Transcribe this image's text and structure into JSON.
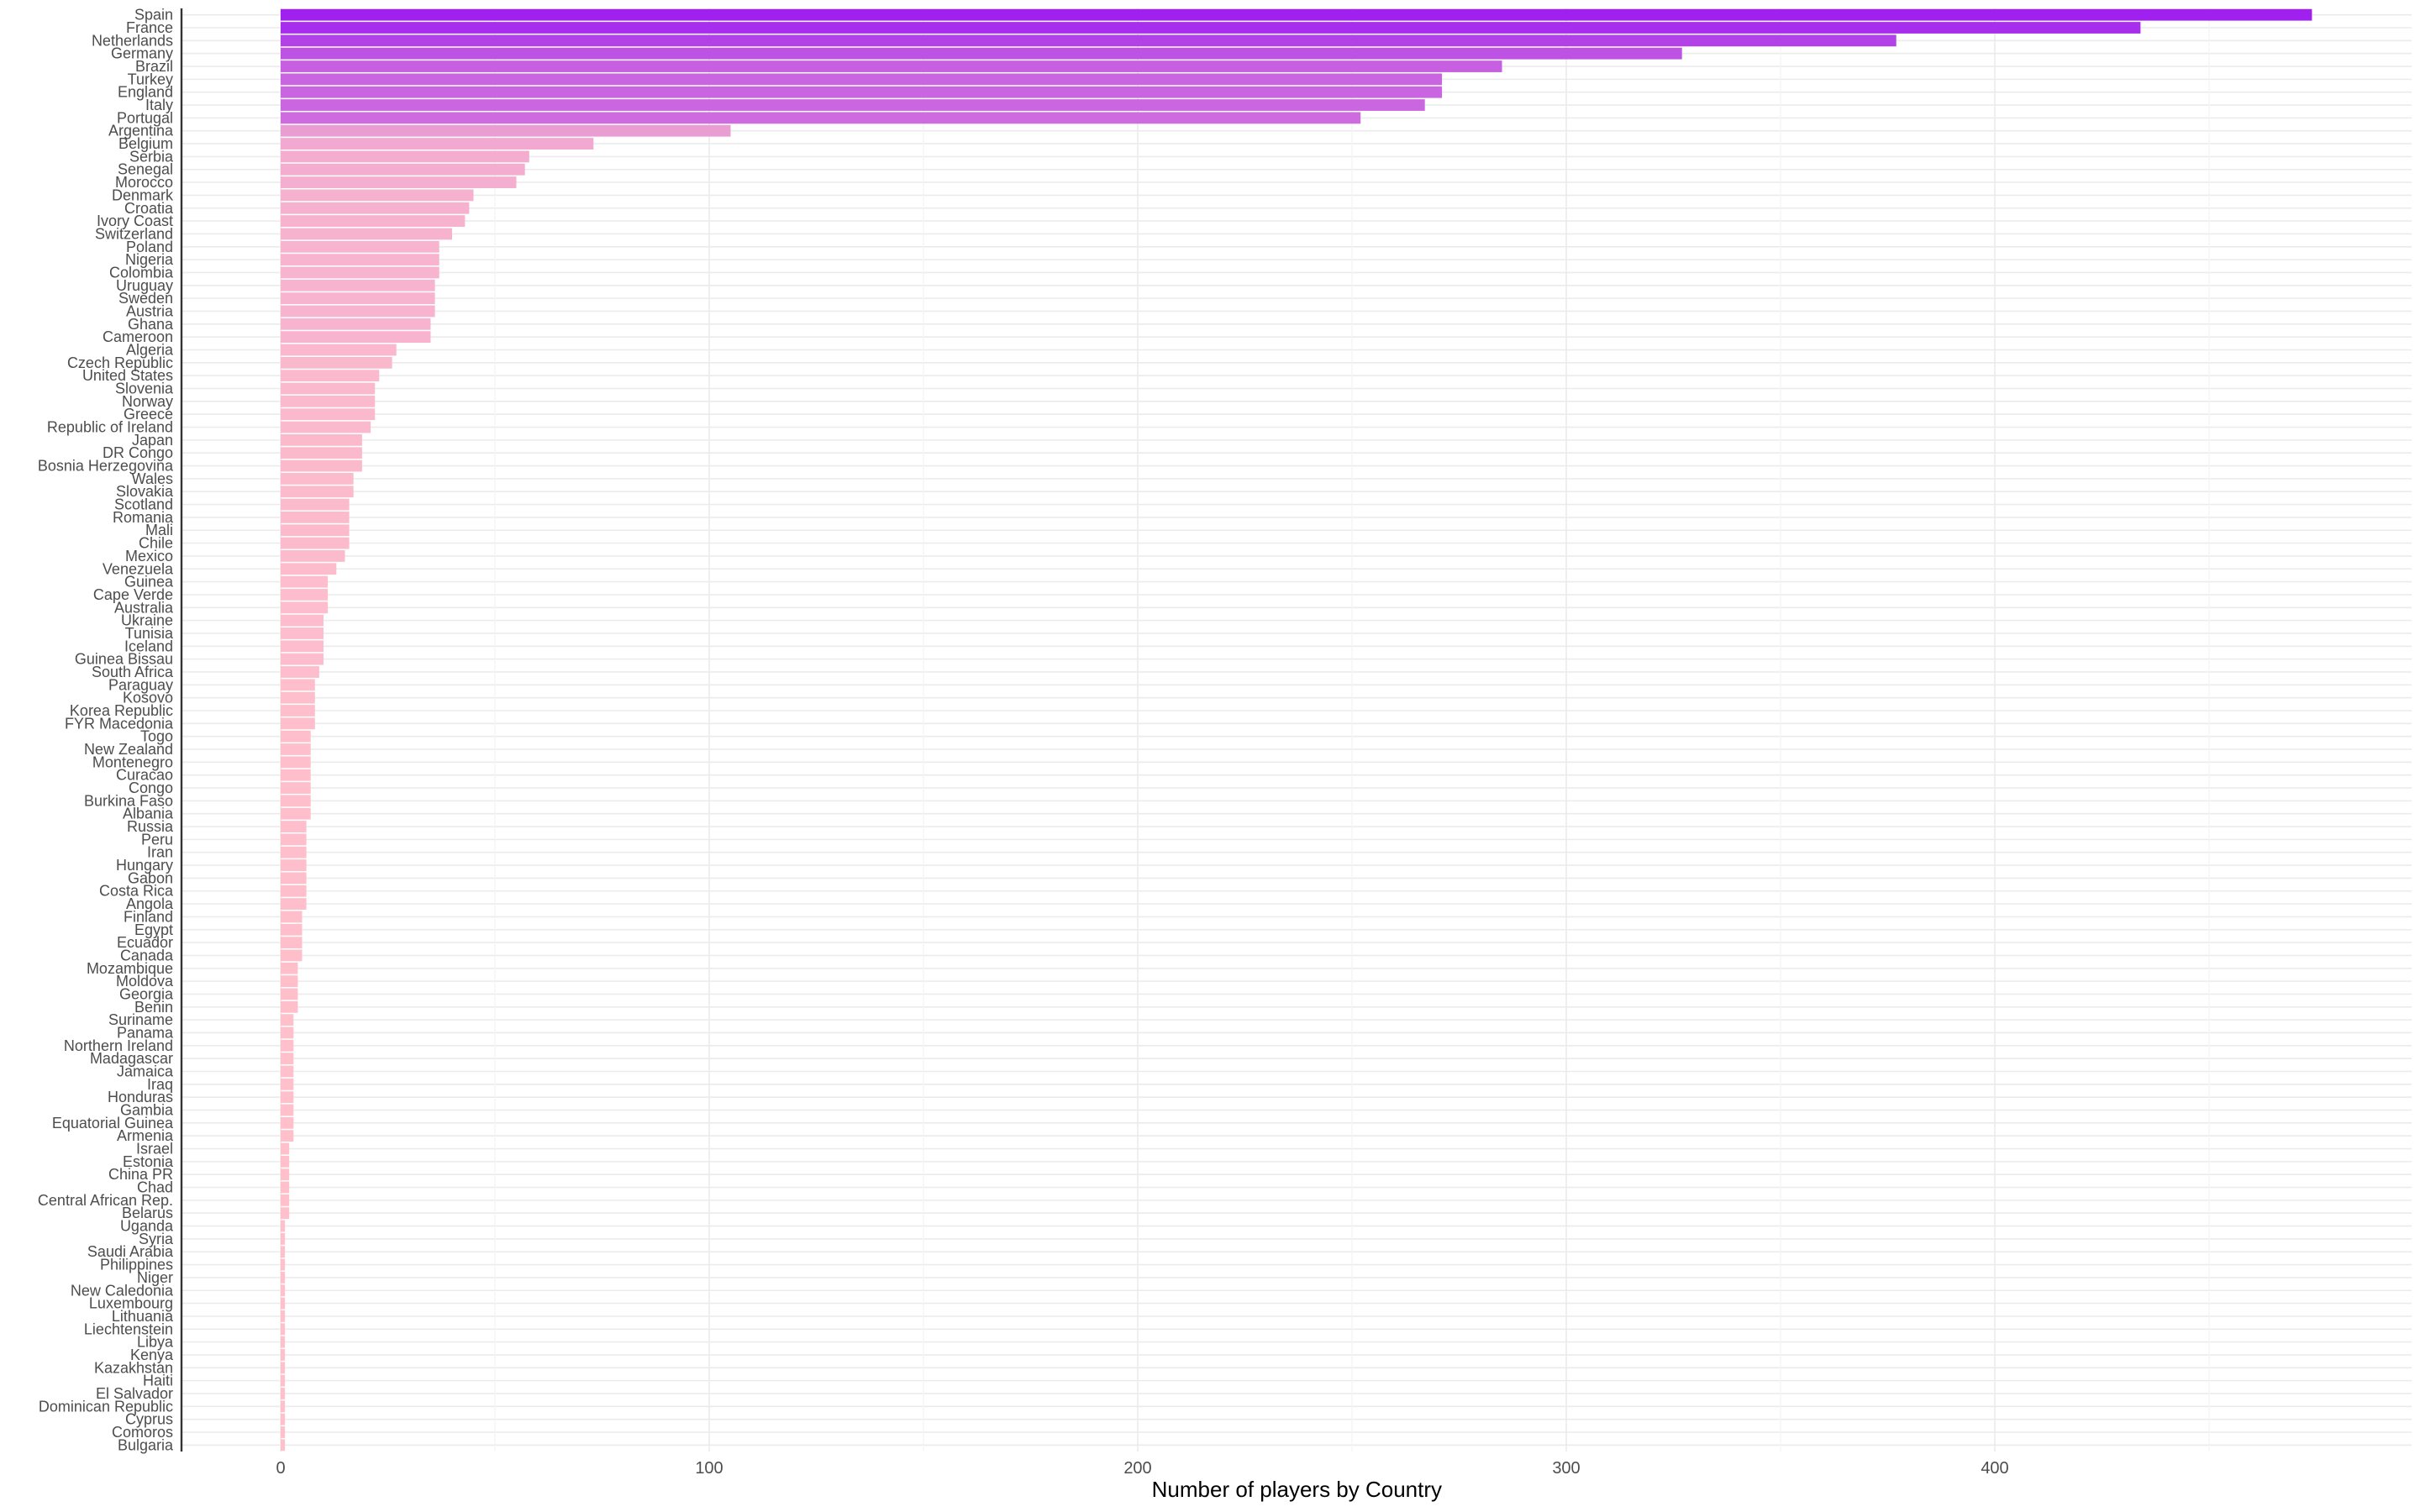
{
  "chart_data": {
    "type": "bar",
    "orientation": "horizontal",
    "xlabel": "Number of players by Country",
    "ylabel": "",
    "xlim": [
      -23,
      495
    ],
    "xticks": [
      0,
      100,
      200,
      300,
      400
    ],
    "grid": true,
    "legend": "none",
    "color_low": "#ffc0cb",
    "color_high": "#a020f0",
    "categories": [
      "Spain",
      "France",
      "Netherlands",
      "Germany",
      "Brazil",
      "Turkey",
      "England",
      "Italy",
      "Portugal",
      "Argentina",
      "Belgium",
      "Serbia",
      "Senegal",
      "Morocco",
      "Denmark",
      "Croatia",
      "Ivory Coast",
      "Switzerland",
      "Poland",
      "Nigeria",
      "Colombia",
      "Uruguay",
      "Sweden",
      "Austria",
      "Ghana",
      "Cameroon",
      "Algeria",
      "Czech Republic",
      "United States",
      "Slovenia",
      "Norway",
      "Greece",
      "Republic of Ireland",
      "Japan",
      "DR Congo",
      "Bosnia Herzegovina",
      "Wales",
      "Slovakia",
      "Scotland",
      "Romania",
      "Mali",
      "Chile",
      "Mexico",
      "Venezuela",
      "Guinea",
      "Cape Verde",
      "Australia",
      "Ukraine",
      "Tunisia",
      "Iceland",
      "Guinea Bissau",
      "South Africa",
      "Paraguay",
      "Kosovo",
      "Korea Republic",
      "FYR Macedonia",
      "Togo",
      "New Zealand",
      "Montenegro",
      "Curacao",
      "Congo",
      "Burkina Faso",
      "Albania",
      "Russia",
      "Peru",
      "Iran",
      "Hungary",
      "Gabon",
      "Costa Rica",
      "Angola",
      "Finland",
      "Egypt",
      "Ecuador",
      "Canada",
      "Mozambique",
      "Moldova",
      "Georgia",
      "Benin",
      "Suriname",
      "Panama",
      "Northern Ireland",
      "Madagascar",
      "Jamaica",
      "Iraq",
      "Honduras",
      "Gambia",
      "Equatorial Guinea",
      "Armenia",
      "Israel",
      "Estonia",
      "China PR",
      "Chad",
      "Central African Rep.",
      "Belarus",
      "Uganda",
      "Syria",
      "Saudi Arabia",
      "Philippines",
      "Niger",
      "New Caledonia",
      "Luxembourg",
      "Lithuania",
      "Liechtenstein",
      "Libya",
      "Kenya",
      "Kazakhstan",
      "Haiti",
      "El Salvador",
      "Dominican Republic",
      "Cyprus",
      "Comoros",
      "Bulgaria"
    ],
    "values": [
      474,
      434,
      377,
      327,
      285,
      271,
      271,
      267,
      252,
      105,
      73,
      58,
      57,
      55,
      45,
      44,
      43,
      40,
      37,
      37,
      37,
      36,
      36,
      36,
      35,
      35,
      27,
      26,
      23,
      22,
      22,
      22,
      21,
      19,
      19,
      19,
      17,
      17,
      16,
      16,
      16,
      16,
      15,
      13,
      11,
      11,
      11,
      10,
      10,
      10,
      10,
      9,
      8,
      8,
      8,
      8,
      7,
      7,
      7,
      7,
      7,
      7,
      7,
      6,
      6,
      6,
      6,
      6,
      6,
      6,
      5,
      5,
      5,
      5,
      4,
      4,
      4,
      4,
      3,
      3,
      3,
      3,
      3,
      3,
      3,
      3,
      3,
      3,
      2,
      2,
      2,
      2,
      2,
      2,
      1,
      1,
      1,
      1,
      1,
      1,
      1,
      1,
      1,
      1,
      1,
      1,
      1,
      1,
      1,
      1,
      1,
      1
    ]
  }
}
